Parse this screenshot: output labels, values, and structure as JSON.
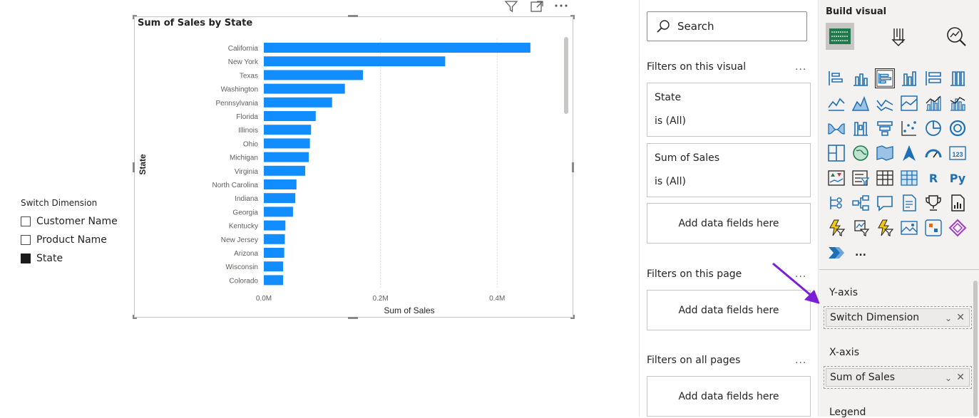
{
  "slicer": {
    "title": "Switch Dimension",
    "items": [
      {
        "label": "Customer Name",
        "checked": false
      },
      {
        "label": "Product Name",
        "checked": false
      },
      {
        "label": "State",
        "checked": true
      }
    ]
  },
  "chart_data": {
    "type": "bar",
    "orientation": "horizontal",
    "title": "Sum of Sales by State",
    "xlabel": "Sum of Sales",
    "ylabel": "State",
    "xlim": [
      0,
      0.5
    ],
    "x_ticks": [
      "0.0M",
      "0.2M",
      "0.4M"
    ],
    "x_tick_values": [
      0,
      0.2,
      0.4
    ],
    "categories": [
      "California",
      "New York",
      "Texas",
      "Washington",
      "Pennsylvania",
      "Florida",
      "Illinois",
      "Ohio",
      "Michigan",
      "Virginia",
      "North Carolina",
      "Indiana",
      "Georgia",
      "Kentucky",
      "New Jersey",
      "Arizona",
      "Wisconsin",
      "Colorado"
    ],
    "values": [
      0.457,
      0.311,
      0.17,
      0.139,
      0.117,
      0.089,
      0.081,
      0.079,
      0.077,
      0.071,
      0.056,
      0.054,
      0.05,
      0.037,
      0.036,
      0.035,
      0.033,
      0.033
    ],
    "bar_color": "#118dff",
    "grid": true
  },
  "filters": {
    "search_placeholder": "Search",
    "on_visual_title": "Filters on this visual",
    "on_page_title": "Filters on this page",
    "all_pages_title": "Filters on all pages",
    "more": "...",
    "visual_filters": [
      {
        "name": "State",
        "value": "is (All)"
      },
      {
        "name": "Sum of Sales",
        "value": "is (All)"
      }
    ],
    "add_data": "Add data fields here"
  },
  "viz": {
    "title": "Build visual",
    "more": "...",
    "y_axis_label": "Y-axis",
    "y_axis_field": "Switch Dimension",
    "x_axis_label": "X-axis",
    "x_axis_field": "Sum of Sales",
    "legend_label": "Legend",
    "icons": [
      "stacked-bar-chart-icon",
      "stacked-column-chart-icon",
      "clustered-bar-chart-icon",
      "clustered-column-chart-icon",
      "100-bar-chart-icon",
      "100-column-chart-icon",
      "line-chart-icon",
      "area-chart-icon",
      "stacked-area-chart-icon",
      "100-area-chart-icon",
      "line-column-chart-icon",
      "line-clustered-column-icon",
      "ribbon-chart-icon",
      "waterfall-chart-icon",
      "funnel-chart-icon",
      "scatter-chart-icon",
      "pie-chart-icon",
      "donut-chart-icon",
      "treemap-icon",
      "map-icon",
      "filled-map-icon",
      "azure-map-icon",
      "gauge-icon",
      "card-icon",
      "kpi-icon",
      "slicer-icon",
      "table-icon",
      "matrix-icon",
      "r-visual-icon",
      "python-visual-icon",
      "key-influencers-icon",
      "decomposition-tree-icon",
      "qa-icon",
      "smart-narrative-icon",
      "goals-icon",
      "paginated-report-icon",
      "power-automate-icon",
      "power-apps-icon",
      "flow-icon",
      "image-icon",
      "custom-visual-icon",
      "powerapps-diamond-icon",
      "get-more-visuals-icon"
    ],
    "r_text": "R",
    "py_text": "Py",
    "card_num": "123"
  }
}
